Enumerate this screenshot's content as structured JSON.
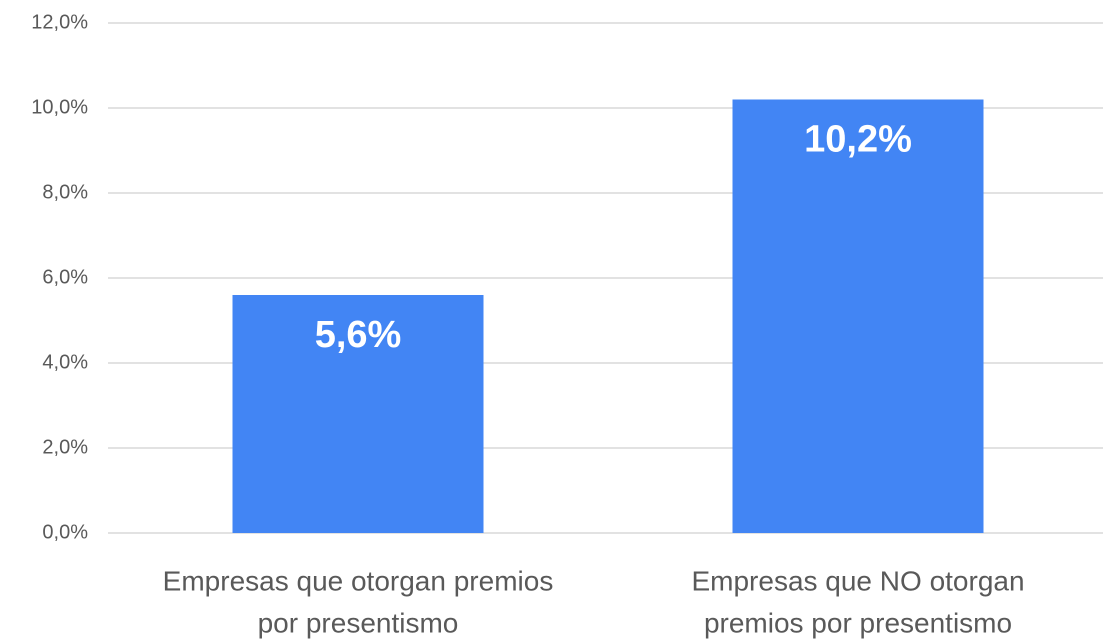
{
  "chart_data": {
    "type": "bar",
    "categories": [
      [
        "Empresas que otorgan premios",
        "por presentismo"
      ],
      [
        "Empresas que NO otorgan",
        "premios por presentismo"
      ]
    ],
    "values": [
      5.6,
      10.2
    ],
    "value_labels": [
      "5,6%",
      "10,2%"
    ],
    "color": "#4285f4",
    "ylim": [
      0,
      12
    ],
    "yticks": [
      {
        "value": 0,
        "label": "0,0%"
      },
      {
        "value": 2,
        "label": "2,0%"
      },
      {
        "value": 4,
        "label": "4,0%"
      },
      {
        "value": 6,
        "label": "6,0%"
      },
      {
        "value": 8,
        "label": "8,0%"
      },
      {
        "value": 10,
        "label": "10,0%"
      },
      {
        "value": 12,
        "label": "12,0%"
      }
    ],
    "grid": true
  }
}
